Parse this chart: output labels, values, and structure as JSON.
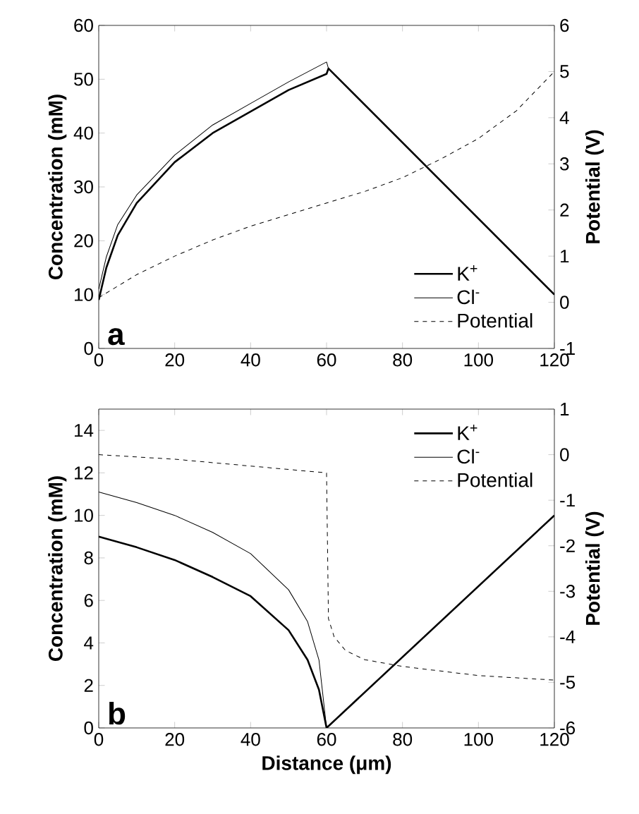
{
  "chart_data": [
    {
      "type": "line",
      "xlim": [
        0,
        120
      ],
      "xticks": [
        0,
        20,
        40,
        60,
        80,
        100,
        120
      ],
      "ylabel": "Concentration (mM)",
      "y2label": "Potential (V)",
      "ylim": [
        0,
        60
      ],
      "yticks": [
        0,
        10,
        20,
        30,
        40,
        50,
        60
      ],
      "y2lim": [
        -1,
        6
      ],
      "y2ticks": [
        -1,
        0,
        1,
        2,
        3,
        4,
        5,
        6
      ],
      "legend": "bottom right",
      "annotations": [
        "a"
      ],
      "series": [
        {
          "name": "K$^{+}$",
          "color": "#000000",
          "line_style": "solid",
          "x": [
            0,
            2,
            5,
            10,
            20,
            30,
            40,
            50,
            60,
            60.5,
            120
          ],
          "values": [
            9,
            15,
            21,
            27,
            34.6,
            40,
            44,
            48,
            51,
            52,
            10
          ]
        },
        {
          "name": "Cl$^{-}$",
          "color": "#000000",
          "line_style": "solid",
          "x": [
            0,
            2,
            5,
            10,
            20,
            30,
            40,
            50,
            60,
            60.5,
            120
          ],
          "values": [
            11,
            17,
            23,
            28.5,
            35.9,
            41.5,
            45.5,
            49.5,
            53.2,
            52,
            10
          ]
        },
        {
          "name": "Potential",
          "color": "#000000",
          "line_style": "dashed",
          "axis": "y2",
          "x": [
            0,
            10,
            20,
            30,
            40,
            50,
            60,
            70,
            80,
            90,
            100,
            110,
            120
          ],
          "values": [
            0.1,
            0.6,
            1.0,
            1.35,
            1.65,
            1.9,
            2.15,
            2.4,
            2.7,
            3.1,
            3.55,
            4.15,
            5.0
          ]
        }
      ]
    },
    {
      "type": "line",
      "xlim": [
        0,
        120
      ],
      "xticks": [
        0,
        20,
        40,
        60,
        80,
        100,
        120
      ],
      "xlabel": "Distance (μm)",
      "ylabel": "Concentration (mM)",
      "y2label": "Potential (V)",
      "ylim": [
        0,
        15
      ],
      "yticks": [
        0,
        2,
        4,
        6,
        8,
        10,
        12,
        14
      ],
      "y2lim": [
        -6,
        1
      ],
      "y2ticks": [
        -6,
        -5,
        -4,
        -3,
        -2,
        -1,
        0,
        1
      ],
      "legend": "top right",
      "annotations": [
        "b"
      ],
      "series": [
        {
          "name": "K$^{+}$",
          "color": "#000000",
          "line_style": "solid",
          "x": [
            0,
            10,
            20,
            30,
            40,
            50,
            55,
            58,
            60,
            120
          ],
          "values": [
            9,
            8.5,
            7.9,
            7.1,
            6.2,
            4.6,
            3.2,
            1.8,
            0,
            10
          ]
        },
        {
          "name": "Cl$^{-}$",
          "color": "#000000",
          "line_style": "solid",
          "x": [
            0,
            10,
            20,
            30,
            40,
            50,
            55,
            58,
            60,
            120
          ],
          "values": [
            11.1,
            10.6,
            10.0,
            9.2,
            8.2,
            6.5,
            5.0,
            3.2,
            0,
            10
          ]
        },
        {
          "name": "Potential",
          "color": "#000000",
          "line_style": "dashed",
          "axis": "y2",
          "x": [
            0,
            20,
            40,
            60,
            60.5,
            62,
            65,
            70,
            80,
            100,
            120
          ],
          "values": [
            0,
            -0.1,
            -0.25,
            -0.4,
            -3.6,
            -4.0,
            -4.3,
            -4.5,
            -4.65,
            -4.85,
            -4.95
          ]
        }
      ]
    }
  ]
}
